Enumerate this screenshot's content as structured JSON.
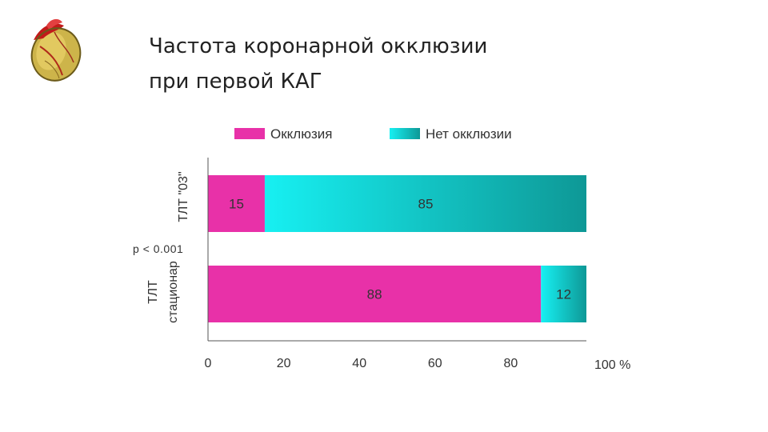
{
  "title": {
    "line1": "Частота коронарной окклюзии",
    "line2": "при первой КАГ"
  },
  "colors": {
    "occlusion": "#e831a8",
    "no_occlusion_light": "#17f0f2",
    "no_occlusion_dark": "#0e9896",
    "axis": "#555555",
    "text": "#333333"
  },
  "chart_data": {
    "type": "bar",
    "orientation": "horizontal",
    "stacked": true,
    "categories": [
      "ТЛТ \"03\"",
      "ТЛТ стационар"
    ],
    "category_lines": [
      [
        "ТЛТ \"03\""
      ],
      [
        "ТЛТ",
        "стационар"
      ]
    ],
    "series": [
      {
        "name": "Окклюзия",
        "values": [
          15,
          88
        ]
      },
      {
        "name": "Нет окклюзии",
        "values": [
          85,
          12
        ]
      }
    ],
    "xlim": [
      0,
      100
    ],
    "xticks": [
      "0",
      "20",
      "40",
      "60",
      "80",
      "100 %"
    ],
    "annotation": "p < 0.001",
    "legend_position": "top",
    "grid": false
  }
}
